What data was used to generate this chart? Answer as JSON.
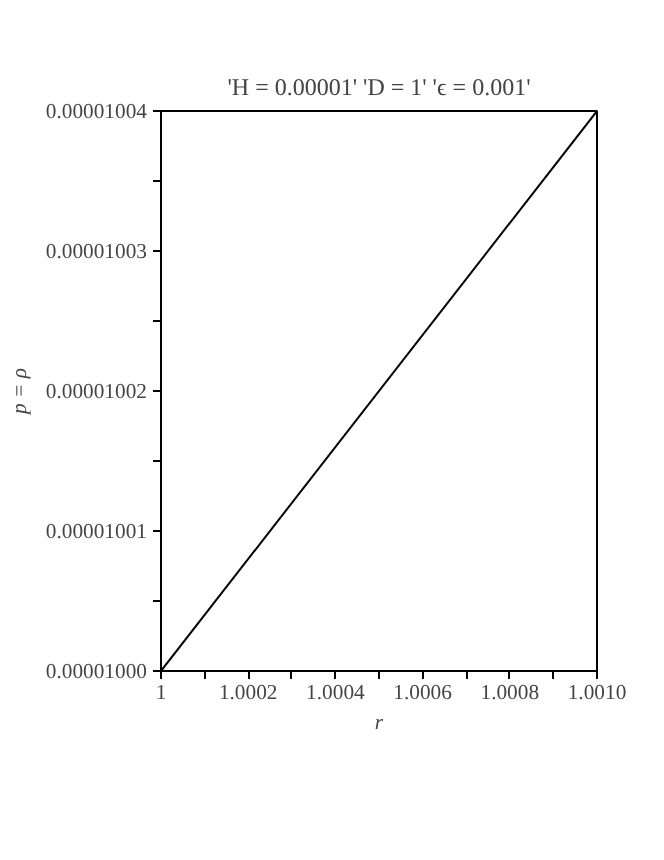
{
  "chart_data": {
    "type": "line",
    "title": "'H = 0.00001' 'D = 1' 'ϵ = 0.001'",
    "xlabel": "r",
    "ylabel": "p = ρ",
    "x": [
      1,
      1.001
    ],
    "series": [
      {
        "color": "#000000",
        "values": [
          1e-05,
          1.004e-05
        ]
      }
    ],
    "xlim": [
      1,
      1.001
    ],
    "ylim": [
      1e-05,
      1.004e-05
    ],
    "xticks": [
      {
        "value": 1,
        "label": "1"
      },
      {
        "value": 1.0001,
        "label": null
      },
      {
        "value": 1.0002,
        "label": "1.0002"
      },
      {
        "value": 1.0003,
        "label": null
      },
      {
        "value": 1.0004,
        "label": "1.0004"
      },
      {
        "value": 1.0005,
        "label": null
      },
      {
        "value": 1.0006,
        "label": "1.0006"
      },
      {
        "value": 1.0007,
        "label": null
      },
      {
        "value": 1.0008,
        "label": "1.0008"
      },
      {
        "value": 1.0009,
        "label": null
      },
      {
        "value": 1.001,
        "label": "1.0010"
      }
    ],
    "yticks": [
      {
        "value": 1e-05,
        "label": "0.00001000"
      },
      {
        "value": 1.0005e-05,
        "label": null
      },
      {
        "value": 1.001e-05,
        "label": "0.00001001"
      },
      {
        "value": 1.0015e-05,
        "label": null
      },
      {
        "value": 1.002e-05,
        "label": "0.00001002"
      },
      {
        "value": 1.0025e-05,
        "label": null
      },
      {
        "value": 1.003e-05,
        "label": "0.00001003"
      },
      {
        "value": 1.0035e-05,
        "label": null
      },
      {
        "value": 1.004e-05,
        "label": "0.00001004"
      }
    ],
    "grid": false,
    "line_style": "solid"
  }
}
